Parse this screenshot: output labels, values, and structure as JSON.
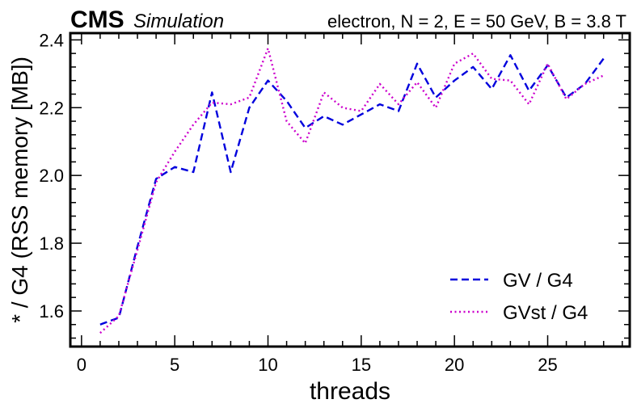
{
  "header": {
    "experiment": "CMS",
    "status": "Simulation",
    "config": "electron, N = 2, E = 50 GeV, B = 3.8 T"
  },
  "chart_data": {
    "type": "line",
    "title": "",
    "xlabel": "threads",
    "ylabel": "* / G4 (RSS memory [MB])",
    "xlim": [
      -0.6,
      29.4
    ],
    "ylim": [
      1.495,
      2.42
    ],
    "xticks": [
      0,
      5,
      10,
      15,
      20,
      25
    ],
    "yticks": [
      1.6,
      1.8,
      2.0,
      2.2,
      2.4
    ],
    "xtick_labels": [
      "0",
      "5",
      "10",
      "15",
      "20",
      "25"
    ],
    "ytick_labels": [
      "1.6",
      "1.8",
      "2.0",
      "2.2",
      "2.4"
    ],
    "grid": false,
    "legend_position": "bottom-right",
    "x": [
      1,
      2,
      3,
      4,
      5,
      6,
      7,
      8,
      9,
      10,
      11,
      12,
      13,
      14,
      15,
      16,
      17,
      18,
      19,
      20,
      21,
      22,
      23,
      24,
      25,
      26,
      27,
      28
    ],
    "series": [
      {
        "name": "GV / G4",
        "color": "#0000dd",
        "style": "dashed",
        "values": [
          1.56,
          1.58,
          1.79,
          1.99,
          2.025,
          2.01,
          2.245,
          2.01,
          2.2,
          2.28,
          2.22,
          2.14,
          2.175,
          2.15,
          2.18,
          2.21,
          2.19,
          2.33,
          2.23,
          2.28,
          2.32,
          2.255,
          2.355,
          2.25,
          2.325,
          2.23,
          2.27,
          2.345
        ]
      },
      {
        "name": "GVst / G4",
        "color": "#cc00cc",
        "style": "dotted",
        "values": [
          1.535,
          1.585,
          1.78,
          1.98,
          2.07,
          2.15,
          2.215,
          2.21,
          2.23,
          2.375,
          2.16,
          2.095,
          2.245,
          2.2,
          2.19,
          2.27,
          2.21,
          2.275,
          2.2,
          2.33,
          2.36,
          2.285,
          2.28,
          2.21,
          2.33,
          2.225,
          2.27,
          2.295
        ]
      }
    ]
  }
}
